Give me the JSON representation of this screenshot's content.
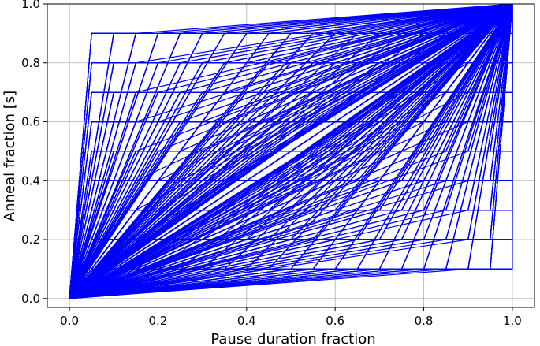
{
  "chart_data": {
    "type": "line",
    "xlabel": "Pause duration fraction",
    "ylabel": "Anneal fraction [s]",
    "xlim": [
      -0.05,
      1.05
    ],
    "ylim": [
      -0.03,
      1.0
    ],
    "xticks": [
      "0.0",
      "0.2",
      "0.4",
      "0.6",
      "0.8",
      "1.0"
    ],
    "yticks": [
      "0.0",
      "0.2",
      "0.4",
      "0.6",
      "0.8",
      "1.0"
    ],
    "grid": true,
    "line_color": "#0000ff",
    "pause_levels": [
      0.1,
      0.2,
      0.3,
      0.4,
      0.5,
      0.6,
      0.7,
      0.8,
      0.9
    ],
    "pause_durations": [
      0.1,
      0.2,
      0.3,
      0.4,
      0.5,
      0.6,
      0.7,
      0.8,
      0.9
    ],
    "series_description": "Each curve goes from (0,0) to (s_p, s) where s_p in {0.05..0.95} and s is the pause level, holds at s for the pause duration, then rises to (1,1)."
  }
}
